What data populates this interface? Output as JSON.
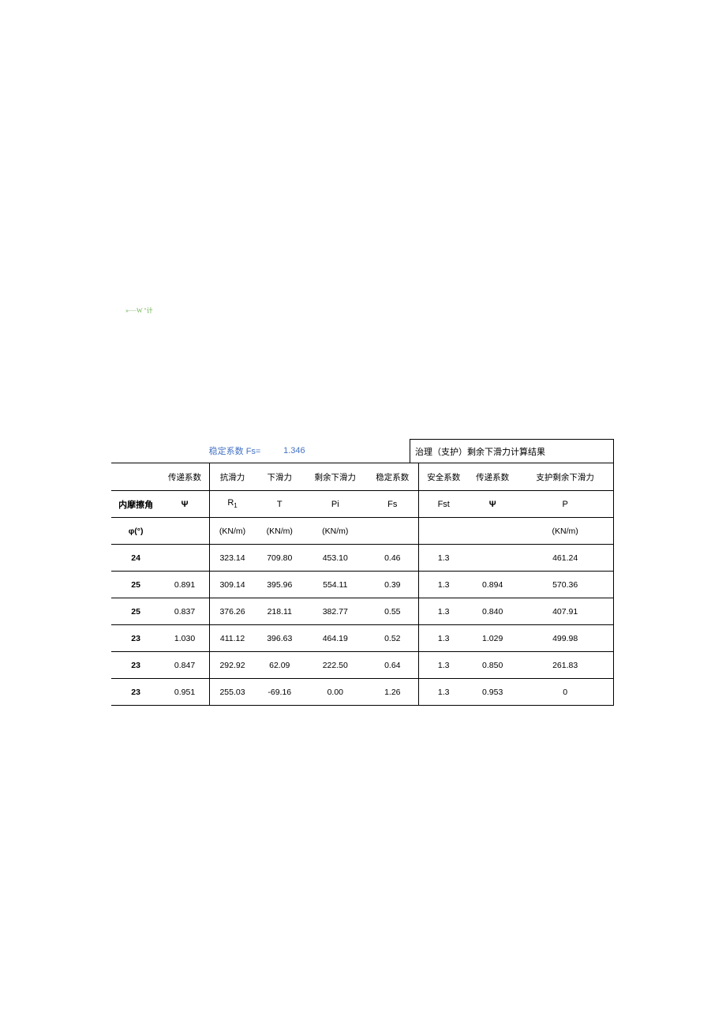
{
  "top_decorative_text": "»∙∙∙∙∙W \"计",
  "header": {
    "fs_label": "稳定系数 Fs=",
    "fs_value": "1.346",
    "right_title": "治理（支护）剩余下滑力计算结果"
  },
  "columns": {
    "row1": [
      "",
      "传递系数",
      "抗滑力",
      "下滑力",
      "剩余下滑力",
      "稳定系数",
      "安全系数",
      "传递系数",
      "支护剩余下滑力"
    ],
    "row2": [
      "内摩擦角",
      "Ψ",
      "R",
      "T",
      "Pi",
      "Fs",
      "Fst",
      "Ψ",
      "P"
    ],
    "row2_sub": [
      "",
      "",
      "1",
      "",
      "",
      "",
      "",
      "",
      ""
    ],
    "row3": [
      "φ(°)",
      "",
      "(KN/m)",
      "(KN/m)",
      "(KN/m)",
      "",
      "",
      "",
      "(KN/m)"
    ]
  },
  "rows": [
    [
      "24",
      "",
      "323.14",
      "709.80",
      "453.10",
      "0.46",
      "1.3",
      "",
      "461.24"
    ],
    [
      "25",
      "0.891",
      "309.14",
      "395.96",
      "554.11",
      "0.39",
      "1.3",
      "0.894",
      "570.36"
    ],
    [
      "25",
      "0.837",
      "376.26",
      "218.11",
      "382.77",
      "0.55",
      "1.3",
      "0.840",
      "407.91"
    ],
    [
      "23",
      "1.030",
      "411.12",
      "396.63",
      "464.19",
      "0.52",
      "1.3",
      "1.029",
      "499.98"
    ],
    [
      "23",
      "0.847",
      "292.92",
      "62.09",
      "222.50",
      "0.64",
      "1.3",
      "0.850",
      "261.83"
    ],
    [
      "23",
      "0.951",
      "255.03",
      "-69.16",
      "0.00",
      "1.26",
      "1.3",
      "0.953",
      "0"
    ]
  ],
  "style": {
    "page_bg": "#ffffff",
    "border_color": "#000000",
    "header_text_color": "#4472c4",
    "top_text_color": "#6ab04c",
    "font_size_body": 11,
    "font_size_small": 10.5
  }
}
